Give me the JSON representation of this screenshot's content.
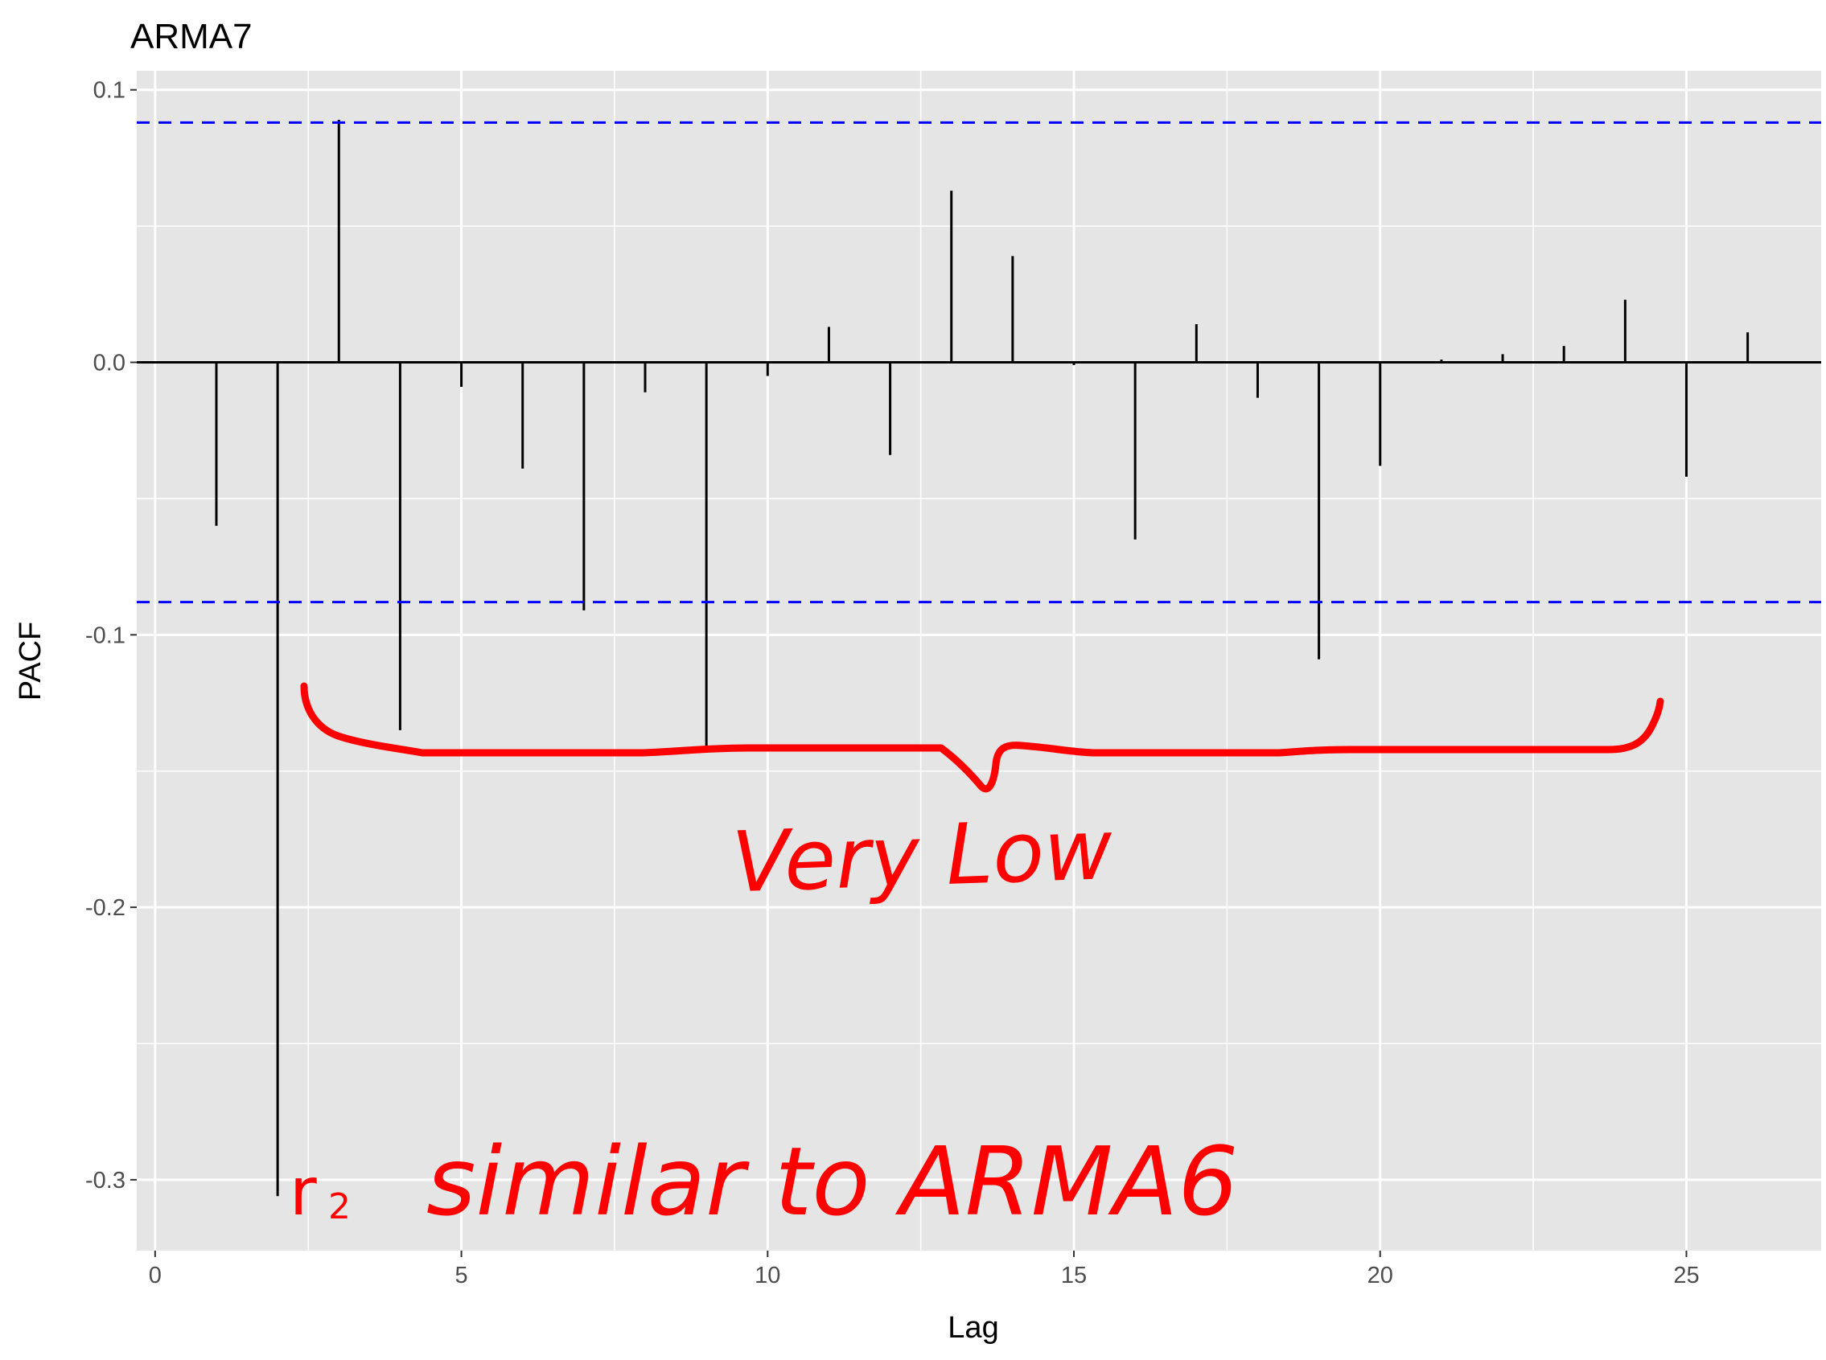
{
  "chart_data": {
    "type": "bar",
    "title": "ARMA7",
    "xlabel": "Lag",
    "ylabel": "PACF",
    "xlim": [
      -0.3,
      27.2
    ],
    "ylim": [
      -0.326,
      0.107
    ],
    "x_ticks": [
      0,
      5,
      10,
      15,
      20,
      25
    ],
    "x_tick_labels": [
      "0",
      "5",
      "10",
      "15",
      "20",
      "25"
    ],
    "y_ticks": [
      0.1,
      0.0,
      -0.1,
      -0.2,
      -0.3
    ],
    "y_tick_labels": [
      "0.1",
      "0.0",
      "-0.1",
      "-0.2",
      "-0.3"
    ],
    "grid": true,
    "confidence_bounds": [
      0.088,
      -0.088
    ],
    "series": [
      {
        "x": [
          1,
          2,
          3,
          4,
          5,
          6,
          7,
          8,
          9,
          10,
          11,
          12,
          13,
          14,
          15,
          16,
          17,
          18,
          19,
          20,
          21,
          22,
          23,
          24,
          25,
          26
        ],
        "values": [
          -0.06,
          -0.306,
          0.089,
          -0.135,
          -0.009,
          -0.039,
          -0.091,
          -0.011,
          -0.142,
          -0.005,
          0.013,
          -0.034,
          0.063,
          0.039,
          -0.001,
          -0.065,
          0.014,
          -0.013,
          -0.109,
          -0.038,
          0.001,
          0.003,
          0.006,
          0.023,
          -0.042,
          0.011
        ]
      }
    ],
    "colors": {
      "panel": "#e5e5e5",
      "grid": "#ffffff",
      "bars": "#000000",
      "bounds": "#0000ff",
      "annotation": "#ff0000"
    },
    "annotations": [
      "Very Low",
      "r",
      "2",
      "similar to ARMA6"
    ]
  }
}
